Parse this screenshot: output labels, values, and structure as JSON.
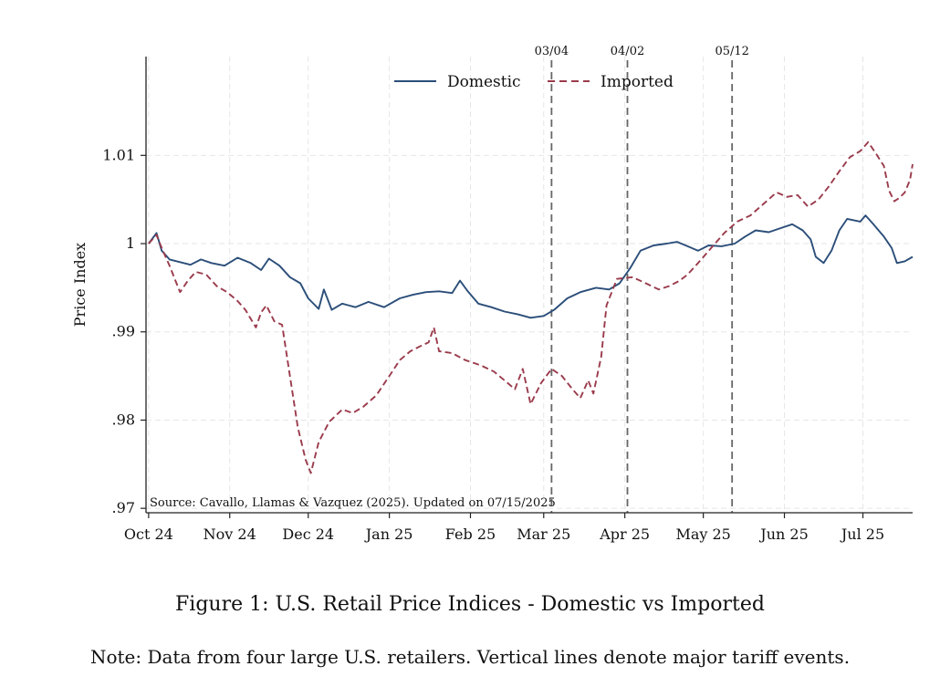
{
  "chart_data": {
    "type": "line",
    "ylabel": "Price Index",
    "ylim": [
      0.9695,
      1.0212
    ],
    "yticks": [
      {
        "value": 0.97,
        "label": ".97"
      },
      {
        "value": 0.98,
        "label": ".98"
      },
      {
        "value": 0.99,
        "label": ".99"
      },
      {
        "value": 1.0,
        "label": "1"
      },
      {
        "value": 1.01,
        "label": "1.01"
      }
    ],
    "xlim": [
      "2024-09-30",
      "2025-07-20"
    ],
    "xticks": [
      {
        "date": "2024-10-01",
        "label": "Oct 24"
      },
      {
        "date": "2024-11-01",
        "label": "Nov 24"
      },
      {
        "date": "2024-12-01",
        "label": "Dec 24"
      },
      {
        "date": "2025-01-01",
        "label": "Jan 25"
      },
      {
        "date": "2025-02-01",
        "label": "Feb 25"
      },
      {
        "date": "2025-03-01",
        "label": "Mar 25"
      },
      {
        "date": "2025-04-01",
        "label": "Apr 25"
      },
      {
        "date": "2025-05-01",
        "label": "May 25"
      },
      {
        "date": "2025-06-01",
        "label": "Jun 25"
      },
      {
        "date": "2025-07-01",
        "label": "Jul 25"
      }
    ],
    "grid": true,
    "legend_position": "top-center",
    "series": [
      {
        "name": "Domestic",
        "color": "#2b4e79",
        "dash": "solid",
        "points": [
          [
            "2024-10-01",
            1.0
          ],
          [
            "2024-10-04",
            1.0012
          ],
          [
            "2024-10-06",
            0.9992
          ],
          [
            "2024-10-09",
            0.9982
          ],
          [
            "2024-10-13",
            0.9979
          ],
          [
            "2024-10-17",
            0.9976
          ],
          [
            "2024-10-21",
            0.9982
          ],
          [
            "2024-10-25",
            0.9978
          ],
          [
            "2024-10-30",
            0.9975
          ],
          [
            "2024-11-04",
            0.9984
          ],
          [
            "2024-11-09",
            0.9978
          ],
          [
            "2024-11-13",
            0.997
          ],
          [
            "2024-11-16",
            0.9983
          ],
          [
            "2024-11-20",
            0.9975
          ],
          [
            "2024-11-24",
            0.9962
          ],
          [
            "2024-11-28",
            0.9955
          ],
          [
            "2024-12-01",
            0.9938
          ],
          [
            "2024-12-05",
            0.9926
          ],
          [
            "2024-12-07",
            0.9948
          ],
          [
            "2024-12-10",
            0.9925
          ],
          [
            "2024-12-14",
            0.9932
          ],
          [
            "2024-12-19",
            0.9928
          ],
          [
            "2024-12-24",
            0.9934
          ],
          [
            "2024-12-30",
            0.9928
          ],
          [
            "2025-01-05",
            0.9938
          ],
          [
            "2025-01-10",
            0.9942
          ],
          [
            "2025-01-15",
            0.9945
          ],
          [
            "2025-01-20",
            0.9946
          ],
          [
            "2025-01-25",
            0.9944
          ],
          [
            "2025-01-28",
            0.9958
          ],
          [
            "2025-01-31",
            0.9946
          ],
          [
            "2025-02-04",
            0.9932
          ],
          [
            "2025-02-09",
            0.9928
          ],
          [
            "2025-02-14",
            0.9923
          ],
          [
            "2025-02-19",
            0.992
          ],
          [
            "2025-02-24",
            0.9916
          ],
          [
            "2025-03-01",
            0.9918
          ],
          [
            "2025-03-05",
            0.9925
          ],
          [
            "2025-03-10",
            0.9938
          ],
          [
            "2025-03-15",
            0.9945
          ],
          [
            "2025-03-21",
            0.995
          ],
          [
            "2025-03-26",
            0.9948
          ],
          [
            "2025-03-30",
            0.9955
          ],
          [
            "2025-04-03",
            0.9972
          ],
          [
            "2025-04-07",
            0.9992
          ],
          [
            "2025-04-12",
            0.9998
          ],
          [
            "2025-04-17",
            1.0
          ],
          [
            "2025-04-21",
            1.0002
          ],
          [
            "2025-04-25",
            0.9997
          ],
          [
            "2025-04-29",
            0.9992
          ],
          [
            "2025-05-03",
            0.9998
          ],
          [
            "2025-05-08",
            0.9997
          ],
          [
            "2025-05-13",
            1.0
          ],
          [
            "2025-05-17",
            1.0008
          ],
          [
            "2025-05-21",
            1.0015
          ],
          [
            "2025-05-26",
            1.0013
          ],
          [
            "2025-05-31",
            1.0018
          ],
          [
            "2025-06-04",
            1.0022
          ],
          [
            "2025-06-08",
            1.0015
          ],
          [
            "2025-06-11",
            1.0005
          ],
          [
            "2025-06-13",
            0.9985
          ],
          [
            "2025-06-16",
            0.9978
          ],
          [
            "2025-06-19",
            0.9992
          ],
          [
            "2025-06-22",
            1.0015
          ],
          [
            "2025-06-25",
            1.0028
          ],
          [
            "2025-06-30",
            1.0025
          ],
          [
            "2025-07-02",
            1.0032
          ],
          [
            "2025-07-05",
            1.0022
          ],
          [
            "2025-07-09",
            1.0008
          ],
          [
            "2025-07-12",
            0.9995
          ],
          [
            "2025-07-14",
            0.9978
          ],
          [
            "2025-07-17",
            0.998
          ],
          [
            "2025-07-20",
            0.9985
          ]
        ]
      },
      {
        "name": "Imported",
        "color": "#9a3b4c",
        "dash": "dashed",
        "points": [
          [
            "2024-10-01",
            1.0
          ],
          [
            "2024-10-04",
            1.001
          ],
          [
            "2024-10-06",
            0.9995
          ],
          [
            "2024-10-09",
            0.9975
          ],
          [
            "2024-10-11",
            0.996
          ],
          [
            "2024-10-13",
            0.9945
          ],
          [
            "2024-10-16",
            0.9958
          ],
          [
            "2024-10-19",
            0.9968
          ],
          [
            "2024-10-23",
            0.9965
          ],
          [
            "2024-10-27",
            0.9952
          ],
          [
            "2024-10-31",
            0.9945
          ],
          [
            "2024-11-04",
            0.9935
          ],
          [
            "2024-11-07",
            0.9925
          ],
          [
            "2024-11-11",
            0.9905
          ],
          [
            "2024-11-13",
            0.9922
          ],
          [
            "2024-11-15",
            0.993
          ],
          [
            "2024-11-18",
            0.9912
          ],
          [
            "2024-11-21",
            0.9908
          ],
          [
            "2024-11-24",
            0.985
          ],
          [
            "2024-11-27",
            0.9792
          ],
          [
            "2024-11-30",
            0.9755
          ],
          [
            "2024-12-02",
            0.974
          ],
          [
            "2024-12-05",
            0.9775
          ],
          [
            "2024-12-09",
            0.9798
          ],
          [
            "2024-12-14",
            0.9812
          ],
          [
            "2024-12-18",
            0.9808
          ],
          [
            "2024-12-22",
            0.9815
          ],
          [
            "2024-12-27",
            0.9828
          ],
          [
            "2025-01-01",
            0.985
          ],
          [
            "2025-01-05",
            0.9868
          ],
          [
            "2025-01-09",
            0.9878
          ],
          [
            "2025-01-13",
            0.9884
          ],
          [
            "2025-01-16",
            0.9888
          ],
          [
            "2025-01-18",
            0.9905
          ],
          [
            "2025-01-20",
            0.9878
          ],
          [
            "2025-01-25",
            0.9876
          ],
          [
            "2025-01-30",
            0.9868
          ],
          [
            "2025-02-05",
            0.9862
          ],
          [
            "2025-02-10",
            0.9855
          ],
          [
            "2025-02-14",
            0.9845
          ],
          [
            "2025-02-18",
            0.9835
          ],
          [
            "2025-02-21",
            0.9858
          ],
          [
            "2025-02-24",
            0.9818
          ],
          [
            "2025-02-28",
            0.9842
          ],
          [
            "2025-03-04",
            0.9858
          ],
          [
            "2025-03-08",
            0.985
          ],
          [
            "2025-03-12",
            0.9835
          ],
          [
            "2025-03-15",
            0.9825
          ],
          [
            "2025-03-18",
            0.9845
          ],
          [
            "2025-03-20",
            0.983
          ],
          [
            "2025-03-23",
            0.9872
          ],
          [
            "2025-03-25",
            0.993
          ],
          [
            "2025-03-29",
            0.996
          ],
          [
            "2025-04-04",
            0.9962
          ],
          [
            "2025-04-09",
            0.9955
          ],
          [
            "2025-04-14",
            0.9948
          ],
          [
            "2025-04-18",
            0.9952
          ],
          [
            "2025-04-22",
            0.9958
          ],
          [
            "2025-04-25",
            0.9965
          ],
          [
            "2025-04-29",
            0.9978
          ],
          [
            "2025-05-04",
            0.9995
          ],
          [
            "2025-05-09",
            1.0012
          ],
          [
            "2025-05-14",
            1.0025
          ],
          [
            "2025-05-19",
            1.0032
          ],
          [
            "2025-05-24",
            1.0045
          ],
          [
            "2025-05-29",
            1.0058
          ],
          [
            "2025-06-02",
            1.0053
          ],
          [
            "2025-06-06",
            1.0055
          ],
          [
            "2025-06-10",
            1.0042
          ],
          [
            "2025-06-14",
            1.005
          ],
          [
            "2025-06-18",
            1.0065
          ],
          [
            "2025-06-22",
            1.0082
          ],
          [
            "2025-06-26",
            1.0098
          ],
          [
            "2025-06-30",
            1.0105
          ],
          [
            "2025-07-03",
            1.0115
          ],
          [
            "2025-07-06",
            1.0102
          ],
          [
            "2025-07-09",
            1.0088
          ],
          [
            "2025-07-11",
            1.006
          ],
          [
            "2025-07-13",
            1.0048
          ],
          [
            "2025-07-15",
            1.0052
          ],
          [
            "2025-07-17",
            1.0058
          ],
          [
            "2025-07-19",
            1.0072
          ],
          [
            "2025-07-20",
            1.009
          ]
        ]
      }
    ],
    "events": [
      {
        "date": "2025-03-04",
        "label": "03/04"
      },
      {
        "date": "2025-04-02",
        "label": "04/02"
      },
      {
        "date": "2025-05-12",
        "label": "05/12"
      }
    ],
    "annotation": "Source: Cavallo, Llamas & Vazquez (2025). Updated on 07/15/2025"
  },
  "caption": {
    "title": "Figure 1: U.S. Retail Price Indices - Domestic vs Imported",
    "note": "Note: Data from four large U.S. retailers. Vertical lines denote major tariff events."
  }
}
